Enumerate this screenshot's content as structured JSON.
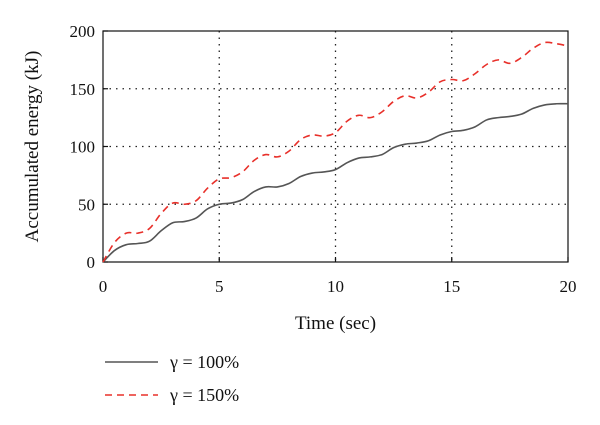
{
  "chart_data": {
    "type": "line",
    "xlabel": "Time (sec)",
    "ylabel": "Accumulated energy (kJ)",
    "xlim": [
      0,
      20
    ],
    "ylim": [
      0,
      200
    ],
    "x_ticks": [
      0,
      5,
      10,
      15,
      20
    ],
    "y_ticks": [
      0,
      50,
      100,
      150,
      200
    ],
    "grid": "dotted",
    "legend_position": "bottom-left, below plot",
    "series": [
      {
        "name": "γ = 100%",
        "color": "#555555",
        "style": "solid",
        "x": [
          0,
          0.5,
          1,
          1.5,
          2,
          2.5,
          3,
          3.5,
          4,
          4.5,
          5,
          5.5,
          6,
          6.5,
          7,
          7.5,
          8,
          8.5,
          9,
          9.5,
          10,
          10.5,
          11,
          11.5,
          12,
          12.5,
          13,
          13.5,
          14,
          14.5,
          15,
          15.5,
          16,
          16.5,
          17,
          17.5,
          18,
          18.5,
          19,
          19.5,
          20
        ],
        "values": [
          0,
          10,
          15,
          16,
          18,
          27,
          34,
          35,
          38,
          46,
          50,
          51,
          54,
          61,
          65,
          65,
          68,
          74,
          77,
          78,
          80,
          86,
          90,
          91,
          93,
          99,
          102,
          103,
          105,
          110,
          113,
          114,
          117,
          123,
          125,
          126,
          128,
          133,
          136,
          137,
          137
        ]
      },
      {
        "name": "γ = 150%",
        "color": "#e8302a",
        "style": "dashed",
        "x": [
          0,
          0.5,
          1,
          1.5,
          2,
          2.5,
          3,
          3.5,
          4,
          4.5,
          5,
          5.5,
          6,
          6.5,
          7,
          7.5,
          8,
          8.5,
          9,
          9.5,
          10,
          10.5,
          11,
          11.5,
          12,
          12.5,
          13,
          13.5,
          14,
          14.5,
          15,
          15.5,
          16,
          16.5,
          17,
          17.5,
          18,
          18.5,
          19,
          19.5,
          20
        ],
        "values": [
          0,
          17,
          25,
          25,
          29,
          42,
          51,
          50,
          53,
          64,
          72,
          73,
          78,
          88,
          93,
          91,
          96,
          106,
          110,
          109,
          112,
          122,
          127,
          125,
          130,
          139,
          144,
          142,
          147,
          156,
          158,
          157,
          163,
          171,
          175,
          172,
          177,
          185,
          190,
          189,
          187
        ]
      }
    ]
  }
}
